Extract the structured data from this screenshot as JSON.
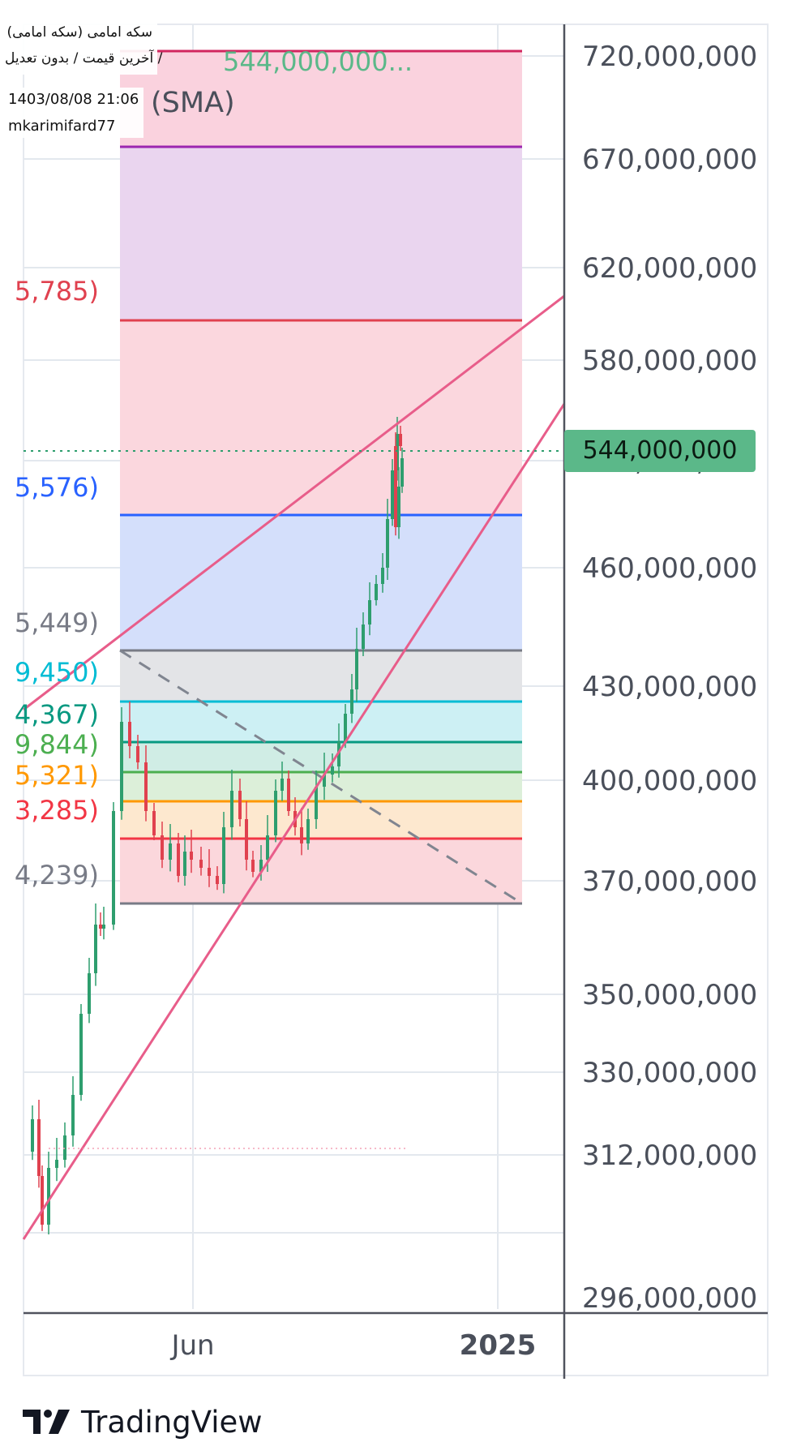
{
  "header": {
    "symbol": "سکه امامی (سکه امامی)",
    "subtitle": "آخرین قیمت / بدون تعدیل /",
    "datetime": "1403/08/08 21:06",
    "author": "mkarimifard77",
    "overlay_price": "544,000,000...",
    "indicator": "(SMA)"
  },
  "price_tag": "544,000,000",
  "brand": {
    "name": "TradingView"
  },
  "colors": {
    "up": "#2e9e6e",
    "down": "#e0414f",
    "trendline": "#e85d8a",
    "price_tag": "#5bb889"
  },
  "chart_data": {
    "type": "candlestick",
    "y_ticks": [
      "720,000,000",
      "670,000,000",
      "620,000,000",
      "580,000,000",
      "500,000,000",
      "460,000,000",
      "430,000,000",
      "400,000,000",
      "370,000,000",
      "350,000,000",
      "330,000,000",
      "312,000,000",
      "296,000,000"
    ],
    "x_ticks": [
      {
        "label": "Jun",
        "bold": false
      },
      {
        "label": "2025",
        "bold": true
      }
    ],
    "current_price": 544000000,
    "fib_labels": [
      {
        "text": "5,785)",
        "color": "#e0414f"
      },
      {
        "text": "5,576)",
        "color": "#2962ff"
      },
      {
        "text": "5,449)",
        "color": "#787b86"
      },
      {
        "text": "9,450)",
        "color": "#00bcd4"
      },
      {
        "text": "4,367)",
        "color": "#089981"
      },
      {
        "text": "9,844)",
        "color": "#4caf50"
      },
      {
        "text": "5,321)",
        "color": "#ff9800"
      },
      {
        "text": "3,285)",
        "color": "#f23645"
      },
      {
        "text": "4,239)",
        "color": "#787b86"
      }
    ]
  }
}
